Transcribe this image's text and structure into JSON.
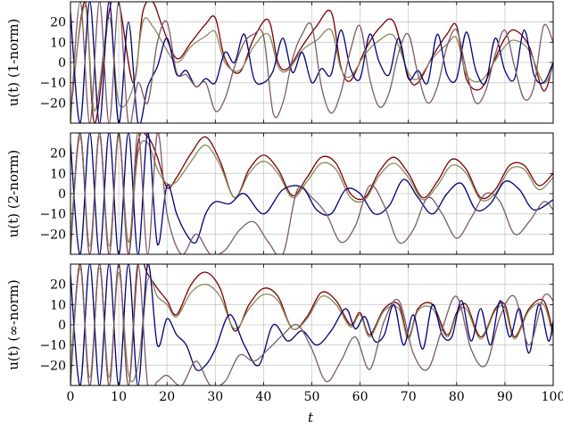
{
  "chart_data": [
    {
      "type": "line",
      "ylabel": "u(t) (1-norm)",
      "xlim": [
        0,
        100
      ],
      "ylim": [
        -30,
        30
      ],
      "xticks": [
        0,
        10,
        20,
        30,
        40,
        50,
        60,
        70,
        80,
        90,
        100
      ],
      "yticks": [
        -20,
        -10,
        0,
        10,
        20
      ],
      "grid": true,
      "series": [
        {
          "color": "#7b0000",
          "x": [
            0,
            3,
            5,
            8,
            10,
            13,
            15,
            17,
            19,
            22,
            25,
            28,
            30,
            32,
            35,
            38,
            41,
            43,
            45,
            48,
            51,
            54,
            56,
            58,
            61,
            64,
            67,
            70,
            72,
            75,
            78,
            80,
            82,
            85,
            88,
            90,
            92,
            95,
            98,
            100
          ],
          "y": [
            -25,
            30,
            -30,
            25,
            30,
            -10,
            25,
            30,
            18,
            2,
            10,
            19,
            22,
            2,
            -5,
            12,
            21,
            0,
            -3,
            8,
            18,
            25,
            -2,
            -9,
            6,
            17,
            20,
            -7,
            -10,
            3,
            14,
            18,
            -8,
            -13,
            2,
            12,
            16,
            8,
            -14,
            0
          ]
        },
        {
          "color": "#8a8a5c",
          "x": [
            0,
            3,
            5,
            8,
            10,
            13,
            15,
            17,
            19,
            22,
            25,
            28,
            30,
            32,
            35,
            38,
            41,
            43,
            45,
            48,
            51,
            54,
            56,
            58,
            61,
            64,
            67,
            70,
            72,
            75,
            78,
            80,
            82,
            85,
            88,
            90,
            92,
            95,
            98,
            100
          ],
          "y": [
            -22,
            28,
            -24,
            22,
            -20,
            -12,
            20,
            18,
            10,
            0,
            8,
            13,
            15,
            0,
            -4,
            8,
            14,
            -2,
            -4,
            6,
            11,
            16,
            -3,
            -7,
            4,
            11,
            13,
            -5,
            -8,
            2,
            9,
            12,
            -6,
            -9,
            1,
            8,
            11,
            6,
            -10,
            -2
          ]
        },
        {
          "color": "#00007a",
          "x": [
            0,
            2,
            4,
            6,
            8,
            10,
            12,
            14,
            16,
            18,
            20,
            22,
            24,
            26,
            28,
            30,
            32,
            34,
            36,
            38,
            40,
            42,
            44,
            46,
            48,
            50,
            52,
            54,
            56,
            58,
            60,
            62,
            64,
            66,
            68,
            70,
            72,
            74,
            76,
            78,
            80,
            82,
            84,
            86,
            88,
            90,
            92,
            94,
            96,
            98,
            100
          ],
          "y": [
            25,
            -30,
            30,
            -30,
            30,
            -30,
            20,
            -30,
            -12,
            -2,
            12,
            -6,
            -4,
            -12,
            -8,
            -10,
            5,
            0,
            14,
            -8,
            -10,
            -4,
            12,
            -5,
            5,
            -10,
            -3,
            -6,
            16,
            -3,
            -8,
            14,
            0,
            -6,
            12,
            -8,
            -4,
            -10,
            14,
            -6,
            -8,
            15,
            -4,
            -10,
            12,
            -4,
            -8,
            16,
            -6,
            -10,
            0
          ]
        },
        {
          "color": "#7e5a66",
          "x": [
            0,
            2,
            4,
            6,
            8,
            10,
            12,
            14,
            16,
            18,
            20,
            22,
            24,
            26,
            28,
            30,
            32,
            34,
            36,
            38,
            40,
            42,
            44,
            46,
            48,
            50,
            52,
            54,
            56,
            58,
            60,
            62,
            64,
            66,
            68,
            70,
            72,
            74,
            76,
            78,
            80,
            82,
            84,
            86,
            88,
            90,
            92,
            94,
            96,
            98,
            100
          ],
          "y": [
            -30,
            30,
            -30,
            30,
            -30,
            30,
            -30,
            -10,
            -20,
            10,
            20,
            -5,
            -6,
            -12,
            -10,
            -24,
            -18,
            -2,
            10,
            14,
            13,
            -25,
            -20,
            2,
            14,
            18,
            -12,
            -25,
            -15,
            6,
            18,
            -8,
            -22,
            -15,
            5,
            14,
            -6,
            -20,
            -12,
            8,
            16,
            -4,
            -20,
            -14,
            4,
            16,
            -2,
            -18,
            -12,
            18,
            10
          ]
        }
      ]
    },
    {
      "type": "line",
      "ylabel": "u(t) (2-norm)",
      "xlim": [
        0,
        100
      ],
      "ylim": [
        -30,
        30
      ],
      "xticks": [
        0,
        10,
        20,
        30,
        40,
        50,
        60,
        70,
        80,
        90,
        100
      ],
      "yticks": [
        -20,
        -10,
        0,
        10,
        20
      ],
      "grid": true,
      "series": [
        {
          "color": "#7b0000",
          "x": [
            0,
            2,
            4,
            6,
            8,
            10,
            12,
            14,
            16,
            18,
            20,
            22,
            25,
            28,
            31,
            34,
            37,
            40,
            43,
            46,
            49,
            52,
            55,
            58,
            61,
            64,
            67,
            70,
            73,
            76,
            79,
            82,
            85,
            88,
            91,
            94,
            97,
            100
          ],
          "y": [
            -25,
            30,
            -30,
            30,
            -30,
            30,
            -30,
            25,
            28,
            18,
            3,
            8,
            20,
            28,
            16,
            -2,
            12,
            19,
            12,
            -1,
            8,
            18,
            15,
            0,
            -2,
            11,
            18,
            10,
            -2,
            6,
            17,
            12,
            -2,
            2,
            14,
            14,
            4,
            10
          ]
        },
        {
          "color": "#8a8a5c",
          "x": [
            0,
            2,
            4,
            6,
            8,
            10,
            12,
            14,
            16,
            18,
            20,
            22,
            25,
            28,
            31,
            34,
            37,
            40,
            43,
            46,
            49,
            52,
            55,
            58,
            61,
            64,
            67,
            70,
            73,
            76,
            79,
            82,
            85,
            88,
            91,
            94,
            97,
            100
          ],
          "y": [
            -22,
            28,
            -26,
            28,
            -26,
            28,
            -24,
            20,
            25,
            12,
            5,
            6,
            16,
            24,
            14,
            -2,
            10,
            16,
            10,
            -2,
            6,
            15,
            12,
            -2,
            -3,
            9,
            15,
            8,
            -3,
            4,
            14,
            10,
            -3,
            0,
            12,
            12,
            2,
            8
          ]
        },
        {
          "color": "#00007a",
          "x": [
            0,
            2,
            4,
            6,
            8,
            10,
            12,
            14,
            16,
            18,
            20,
            22,
            24,
            26,
            28,
            30,
            33,
            36,
            40,
            44,
            48,
            51,
            54,
            57,
            60,
            63,
            66,
            69,
            72,
            75,
            78,
            81,
            84,
            87,
            90,
            93,
            96,
            100
          ],
          "y": [
            25,
            -30,
            30,
            -30,
            30,
            -30,
            30,
            -30,
            30,
            -25,
            4,
            -10,
            -20,
            -24,
            -10,
            -4,
            -5,
            0,
            -10,
            2,
            3,
            -8,
            -10,
            2,
            0,
            -10,
            -6,
            7,
            -2,
            -10,
            0,
            5,
            -8,
            -5,
            6,
            2,
            -8,
            -3
          ]
        },
        {
          "color": "#7e5a66",
          "x": [
            0,
            2,
            4,
            6,
            8,
            10,
            12,
            14,
            16,
            18,
            20,
            23,
            26,
            29,
            32,
            35,
            38,
            41,
            44,
            47,
            50,
            53,
            56,
            59,
            62,
            65,
            68,
            71,
            74,
            77,
            80,
            83,
            86,
            89,
            92,
            95,
            98,
            100
          ],
          "y": [
            -30,
            30,
            -30,
            30,
            -30,
            30,
            -30,
            30,
            -30,
            30,
            -10,
            -30,
            -20,
            -30,
            -28,
            -18,
            -14,
            -24,
            -30,
            2,
            -2,
            -10,
            -24,
            -16,
            4,
            -6,
            -24,
            -18,
            -2,
            -10,
            -22,
            -12,
            0,
            -4,
            -20,
            -14,
            -4,
            -8
          ]
        }
      ]
    },
    {
      "type": "line",
      "ylabel": "u(t) (∞-norm)",
      "xlabel": "t",
      "xlim": [
        0,
        100
      ],
      "ylim": [
        -30,
        30
      ],
      "xticks": [
        0,
        10,
        20,
        30,
        40,
        50,
        60,
        70,
        80,
        90,
        100
      ],
      "yticks": [
        -20,
        -10,
        0,
        10,
        20
      ],
      "grid": true,
      "series": [
        {
          "color": "#7b0000",
          "x": [
            0,
            2,
            4,
            6,
            8,
            10,
            12,
            14,
            16,
            18,
            20,
            22,
            25,
            28,
            31,
            34,
            37,
            40,
            43,
            46,
            49,
            52,
            55,
            58,
            60,
            62,
            65,
            68,
            70,
            72,
            75,
            78,
            80,
            82,
            85,
            88,
            90,
            92,
            95,
            98,
            100
          ],
          "y": [
            -25,
            30,
            -30,
            30,
            -30,
            30,
            -30,
            30,
            25,
            18,
            12,
            5,
            20,
            26,
            18,
            -3,
            10,
            18,
            14,
            -2,
            4,
            16,
            12,
            0,
            6,
            -5,
            8,
            10,
            -6,
            8,
            10,
            -5,
            6,
            10,
            -6,
            8,
            10,
            -6,
            8,
            12,
            -4
          ]
        },
        {
          "color": "#8a8a5c",
          "x": [
            0,
            2,
            4,
            6,
            8,
            10,
            12,
            14,
            16,
            18,
            20,
            22,
            25,
            28,
            31,
            34,
            37,
            40,
            43,
            46,
            49,
            52,
            55,
            58,
            60,
            62,
            65,
            68,
            70,
            72,
            75,
            78,
            80,
            82,
            85,
            88,
            90,
            92,
            95,
            98,
            100
          ],
          "y": [
            -22,
            28,
            -26,
            28,
            -26,
            26,
            -24,
            -20,
            22,
            14,
            10,
            4,
            16,
            20,
            14,
            -2,
            8,
            15,
            12,
            -2,
            3,
            14,
            10,
            -1,
            5,
            -6,
            7,
            8,
            -7,
            7,
            8,
            -6,
            5,
            8,
            -7,
            7,
            8,
            -7,
            7,
            10,
            -6
          ]
        },
        {
          "color": "#00007a",
          "x": [
            0,
            2,
            4,
            6,
            8,
            10,
            12,
            14,
            16,
            18,
            20,
            22,
            24,
            26,
            28,
            30,
            33,
            36,
            39,
            42,
            45,
            48,
            51,
            54,
            57,
            59,
            61,
            63,
            65,
            67,
            69,
            71,
            73,
            75,
            77,
            79,
            81,
            83,
            85,
            87,
            89,
            91,
            93,
            95,
            97,
            99,
            100
          ],
          "y": [
            25,
            -30,
            30,
            -30,
            30,
            -30,
            30,
            -30,
            30,
            -10,
            3,
            -5,
            -10,
            -22,
            -20,
            -12,
            5,
            -10,
            -20,
            0,
            -8,
            -3,
            -10,
            -3,
            8,
            -2,
            4,
            -8,
            -5,
            10,
            -10,
            5,
            -12,
            10,
            -5,
            -6,
            12,
            -8,
            8,
            -10,
            12,
            -6,
            8,
            -14,
            10,
            -8,
            2
          ]
        },
        {
          "color": "#7e5a66",
          "x": [
            0,
            2,
            4,
            6,
            8,
            10,
            12,
            14,
            16,
            18,
            20,
            23,
            26,
            29,
            32,
            35,
            38,
            41,
            44,
            47,
            50,
            53,
            56,
            59,
            62,
            65,
            68,
            71,
            74,
            77,
            80,
            83,
            86,
            89,
            92,
            95,
            98,
            100
          ],
          "y": [
            -30,
            30,
            -30,
            30,
            -30,
            30,
            -30,
            30,
            -30,
            -28,
            -25,
            -30,
            -18,
            -30,
            -28,
            -15,
            -18,
            -12,
            -5,
            0,
            -12,
            -28,
            -18,
            -6,
            -22,
            2,
            12,
            -14,
            -22,
            -2,
            14,
            -12,
            -20,
            4,
            14,
            -10,
            14,
            12
          ]
        }
      ]
    }
  ]
}
